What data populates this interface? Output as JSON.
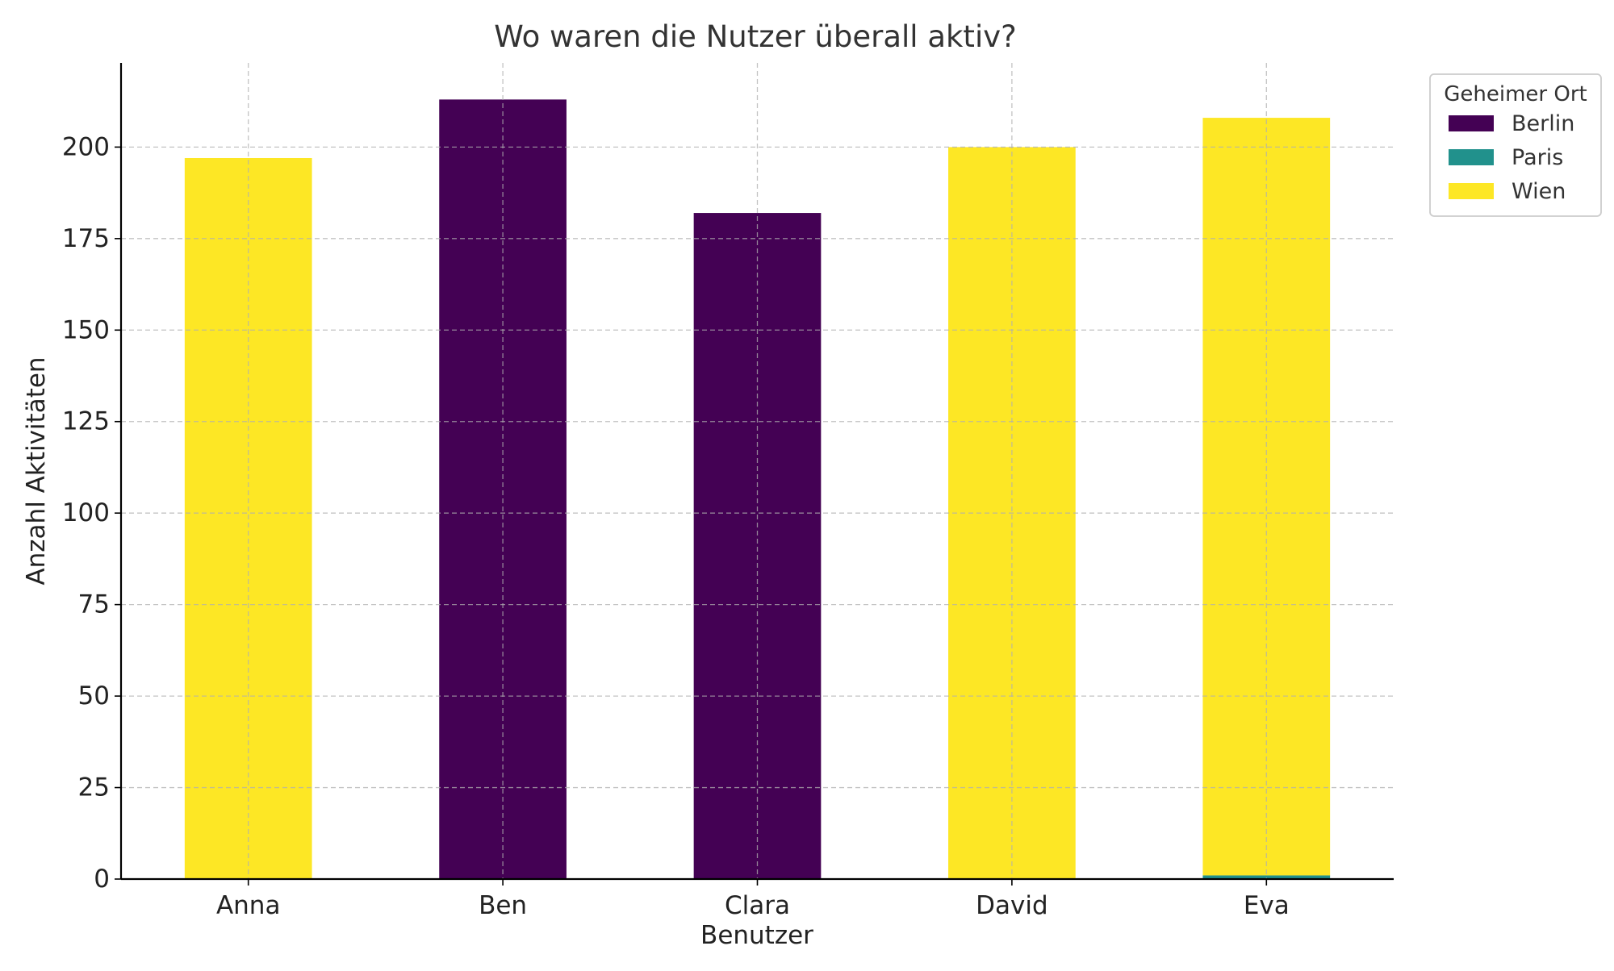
{
  "chart_data": {
    "type": "bar",
    "stacked": true,
    "title": "Wo waren die Nutzer überall aktiv?",
    "xlabel": "Benutzer",
    "ylabel": "Anzahl Aktivitäten",
    "categories": [
      "Anna",
      "Ben",
      "Clara",
      "David",
      "Eva"
    ],
    "series": [
      {
        "name": "Berlin",
        "color": "#440154",
        "values": [
          0,
          213,
          182,
          0,
          0
        ]
      },
      {
        "name": "Paris",
        "color": "#21918c",
        "values": [
          0,
          0,
          0,
          0,
          1
        ]
      },
      {
        "name": "Wien",
        "color": "#fde725",
        "values": [
          197,
          0,
          0,
          200,
          207
        ]
      }
    ],
    "ylim": [
      0,
      223
    ],
    "yticks": [
      0,
      25,
      50,
      75,
      100,
      125,
      150,
      175,
      200
    ],
    "grid": true,
    "legend": {
      "title": "Geheimer Ort",
      "placement": "outside-top-right"
    }
  }
}
